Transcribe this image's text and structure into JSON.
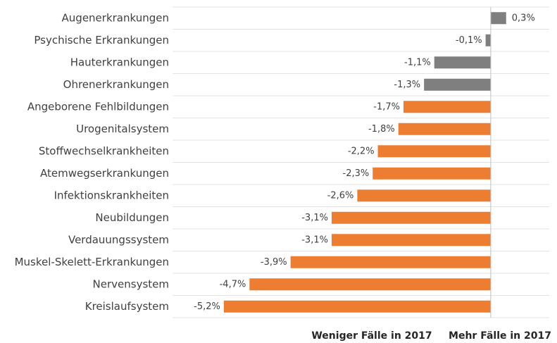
{
  "chart_data": {
    "type": "hbar",
    "categories": [
      "Augenerkrankungen",
      "Psychische Erkrankungen",
      "Hauterkrankungen",
      "Ohrenerkrankungen",
      "Angeborene Fehlbildungen",
      "Urogenitalsystem",
      "Stoffwechselkrankheiten",
      "Atemwegserkrankungen",
      "Infektionskrankheiten",
      "Neubildungen",
      "Verdauungssystem",
      "Muskel-Skelett-Erkrankungen",
      "Nervensystem",
      "Kreislaufsystem"
    ],
    "values": [
      0.3,
      -0.1,
      -1.1,
      -1.3,
      -1.7,
      -1.8,
      -2.2,
      -2.3,
      -2.6,
      -3.1,
      -3.1,
      -3.9,
      -4.7,
      -5.2
    ],
    "value_labels": [
      "0,3%",
      "-0,1%",
      "-1,1%",
      "-1,3%",
      "-1,7%",
      "-1,8%",
      "-2,2%",
      "-2,3%",
      "-2,6%",
      "-3,1%",
      "-3,1%",
      "-3,9%",
      "-4,7%",
      "-5,2%"
    ],
    "colors": [
      "#7f7f7f",
      "#7f7f7f",
      "#7f7f7f",
      "#7f7f7f",
      "#ed7d31",
      "#ed7d31",
      "#ed7d31",
      "#ed7d31",
      "#ed7d31",
      "#ed7d31",
      "#ed7d31",
      "#ed7d31",
      "#ed7d31",
      "#ed7d31"
    ],
    "xlim": [
      -6.2,
      1.14
    ],
    "annotations": [
      "Weniger Fälle in 2017",
      "Mehr Fälle in 2017"
    ]
  }
}
